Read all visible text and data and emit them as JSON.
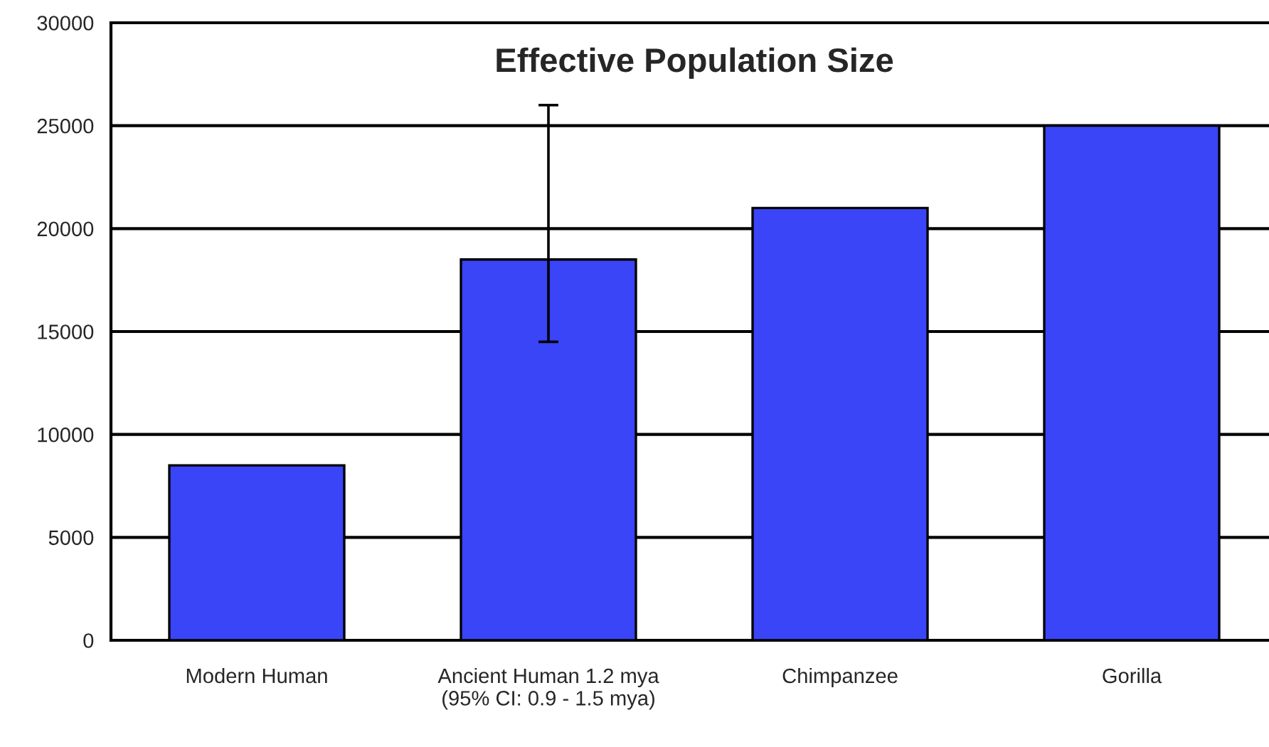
{
  "chart_data": {
    "type": "bar",
    "title": "Effective Population Size",
    "categories": [
      "Modern Human",
      "Ancient Human 1.2 mya\n(95% CI: 0.9 - 1.5 mya)",
      "Chimpanzee",
      "Gorilla"
    ],
    "values": [
      8500,
      18500,
      21000,
      25000
    ],
    "errors": [
      null,
      [
        14500,
        26000
      ],
      null,
      null
    ],
    "color": "#3945f7",
    "ylim": [
      0,
      30000
    ],
    "yticks": [
      0,
      5000,
      10000,
      15000,
      20000,
      25000,
      30000
    ],
    "grid": "y",
    "legend": false
  }
}
